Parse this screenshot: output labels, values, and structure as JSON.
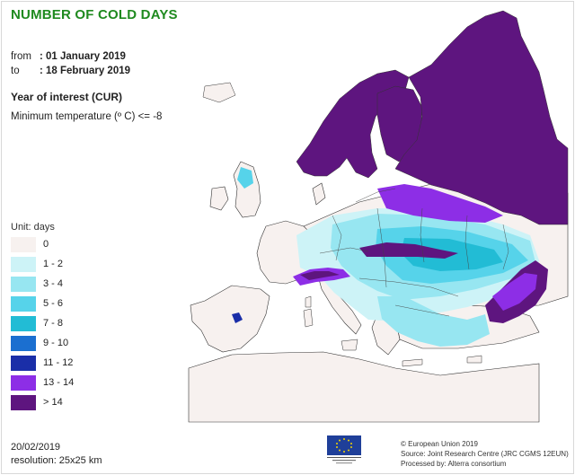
{
  "title": "NUMBER OF COLD DAYS",
  "period": {
    "from_label": "from",
    "from_value": ": 01 January 2019",
    "to_label": "to",
    "to_value": ": 18 February 2019"
  },
  "year_of_interest": "Year of interest (CUR)",
  "criterion": "Minimum temperature (º C) <= -8",
  "legend": {
    "unit": "Unit: days",
    "items": [
      {
        "label": "0",
        "color": "#f7f1ef"
      },
      {
        "label": "1 - 2",
        "color": "#cdf3f7"
      },
      {
        "label": "3 - 4",
        "color": "#97e6f1"
      },
      {
        "label": "5 - 6",
        "color": "#56d3ea"
      },
      {
        "label": "7 - 8",
        "color": "#22bcd5"
      },
      {
        "label": "9 - 10",
        "color": "#1b6fd0"
      },
      {
        "label": "11 - 12",
        "color": "#1a2ea8"
      },
      {
        "label": "13 - 14",
        "color": "#8d2ee6"
      },
      {
        "label": "> 14",
        "color": "#5e157f"
      }
    ]
  },
  "footer": {
    "date": "20/02/2019",
    "resolution": "resolution: 25x25 km",
    "copyright": "© European Union 2019",
    "source": "Source: Joint Research Centre (JRC CGMS 12EUN)",
    "processed": "Processed by: Alterra consortium",
    "logo_text": "European Commission"
  }
}
